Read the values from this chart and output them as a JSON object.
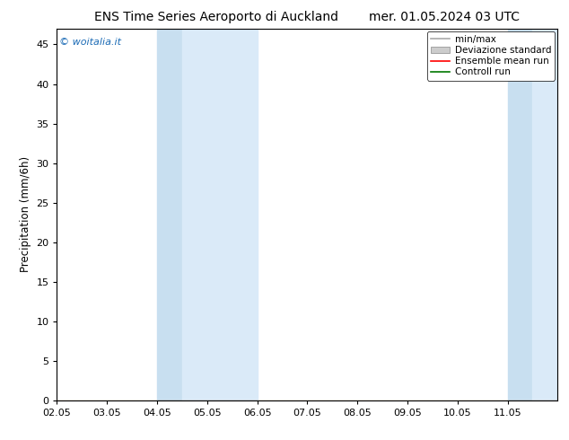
{
  "title_left": "ENS Time Series Aeroporto di Auckland",
  "title_right": "mer. 01.05.2024 03 UTC",
  "ylabel": "Precipitation (mm/6h)",
  "xlim": [
    0,
    10
  ],
  "ylim": [
    0,
    47
  ],
  "yticks": [
    0,
    5,
    10,
    15,
    20,
    25,
    30,
    35,
    40,
    45
  ],
  "xtick_labels": [
    "02.05",
    "03.05",
    "04.05",
    "05.05",
    "06.05",
    "07.05",
    "08.05",
    "09.05",
    "10.05",
    "11.05"
  ],
  "xtick_positions": [
    0,
    1,
    2,
    3,
    4,
    5,
    6,
    7,
    8,
    9
  ],
  "shaded_bands": [
    {
      "xmin": 2.0,
      "xmax": 2.5
    },
    {
      "xmin": 2.5,
      "xmax": 4.0
    },
    {
      "xmin": 9.0,
      "xmax": 9.5
    },
    {
      "xmin": 9.5,
      "xmax": 10.0
    }
  ],
  "shade_color_light": "#ddeef8",
  "shade_color_dark": "#c8e0f0",
  "watermark_text": "© woitalia.it",
  "watermark_color": "#1a6ab5",
  "legend_labels": [
    "min/max",
    "Deviazione standard",
    "Ensemble mean run",
    "Controll run"
  ],
  "line_color_minmax": "#aaaaaa",
  "line_color_ens": "#ff0000",
  "line_color_ctrl": "#007700",
  "patch_color_dev": "#cccccc",
  "background_color": "#ffffff",
  "title_fontsize": 10,
  "axis_fontsize": 8.5,
  "tick_fontsize": 8,
  "legend_fontsize": 7.5
}
